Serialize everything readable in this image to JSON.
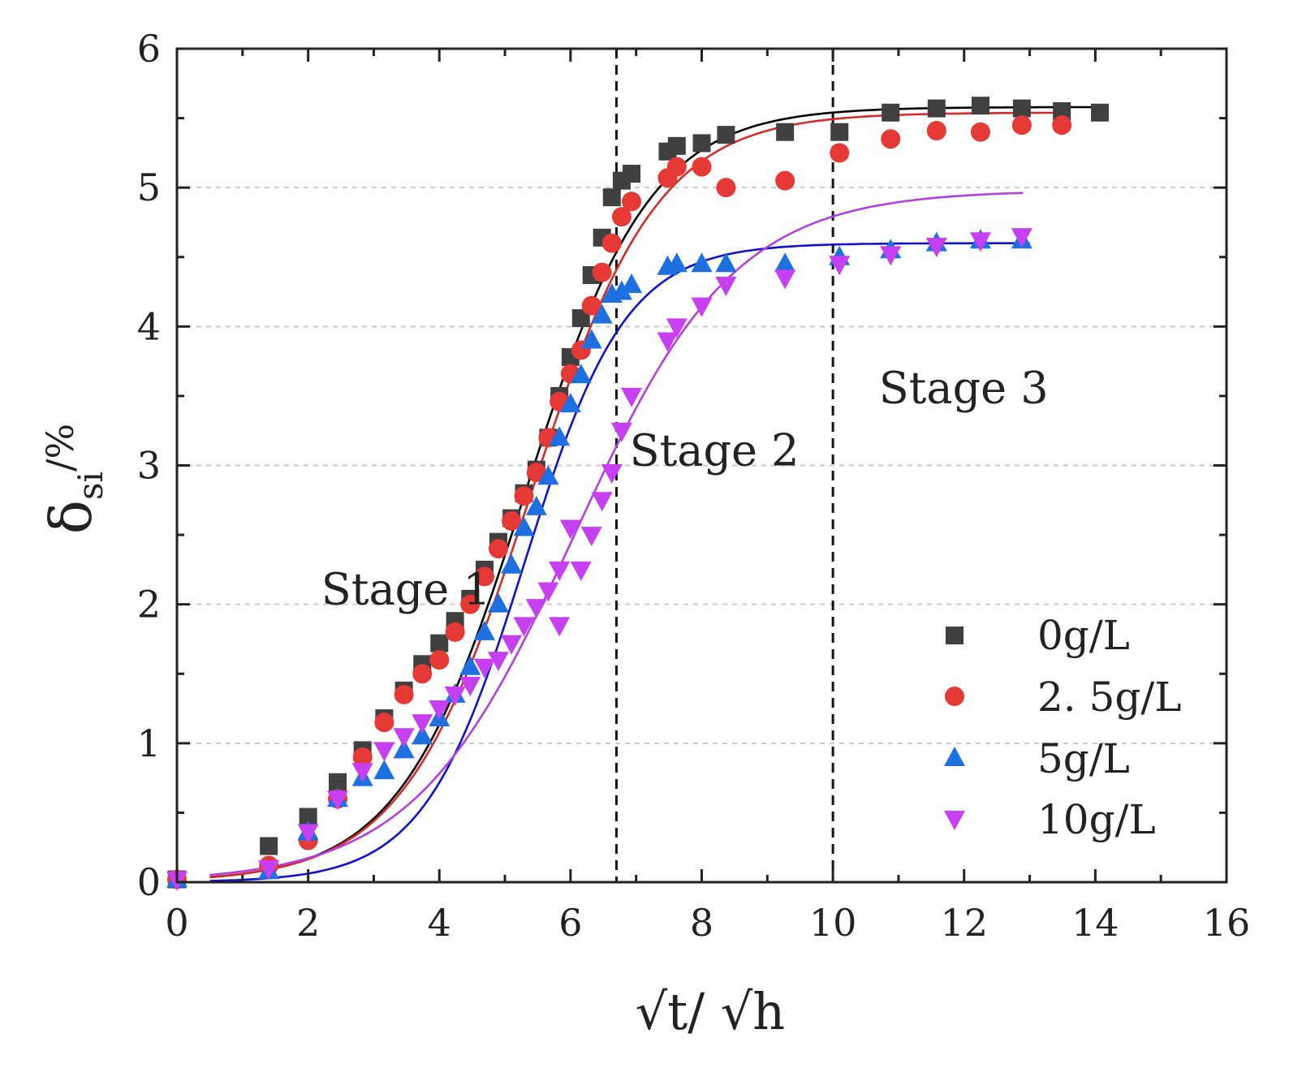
{
  "chart_data": {
    "type": "scatter",
    "title": "",
    "xlabel": "√t/ √h",
    "ylabel": {
      "main": "δ",
      "sub": "si",
      "unit": "/%"
    },
    "xlim": [
      0,
      16
    ],
    "ylim": [
      0,
      6
    ],
    "x_ticks": [
      0,
      2,
      4,
      6,
      8,
      10,
      12,
      14,
      16
    ],
    "y_ticks": [
      0,
      1,
      2,
      3,
      4,
      5,
      6
    ],
    "grid": "horizontal dashed",
    "legend_position": "bottom-right",
    "vlines": [
      6.7,
      10
    ],
    "annotations": [
      {
        "text": "Stage 1",
        "x": 2.2,
        "y": 2.0
      },
      {
        "text": "Stage 2",
        "x": 6.9,
        "y": 3.0
      },
      {
        "text": "Stage 3",
        "x": 10.7,
        "y": 3.45
      }
    ],
    "colors": {
      "s0": "#404040",
      "s1": "#e53935",
      "s2": "#1e6fe0",
      "s3": "#c63ff0"
    },
    "series": [
      {
        "name": "0g/L",
        "marker": "square",
        "color_key": "s0",
        "fit_color": "#000000",
        "fit": {
          "A": 5.58,
          "x0": 5.3,
          "k": 1.05,
          "start": 0.5,
          "end": 14
        },
        "points": [
          [
            0,
            0.02
          ],
          [
            1.4,
            0.26
          ],
          [
            2.0,
            0.47
          ],
          [
            2.45,
            0.72
          ],
          [
            2.83,
            0.95
          ],
          [
            3.16,
            1.18
          ],
          [
            3.46,
            1.38
          ],
          [
            3.74,
            1.57
          ],
          [
            4.0,
            1.72
          ],
          [
            4.24,
            1.88
          ],
          [
            4.47,
            2.04
          ],
          [
            4.69,
            2.25
          ],
          [
            4.9,
            2.45
          ],
          [
            5.1,
            2.62
          ],
          [
            5.29,
            2.8
          ],
          [
            5.48,
            2.97
          ],
          [
            5.66,
            3.2
          ],
          [
            5.83,
            3.5
          ],
          [
            6.0,
            3.78
          ],
          [
            6.16,
            4.06
          ],
          [
            6.32,
            4.37
          ],
          [
            6.48,
            4.64
          ],
          [
            6.63,
            4.93
          ],
          [
            6.78,
            5.05
          ],
          [
            6.93,
            5.1
          ],
          [
            7.48,
            5.26
          ],
          [
            7.62,
            5.3
          ],
          [
            8.0,
            5.32
          ],
          [
            8.37,
            5.38
          ],
          [
            9.27,
            5.4
          ],
          [
            10.1,
            5.4
          ],
          [
            10.88,
            5.54
          ],
          [
            11.58,
            5.57
          ],
          [
            12.25,
            5.59
          ],
          [
            12.88,
            5.57
          ],
          [
            13.49,
            5.55
          ],
          [
            14.07,
            5.54
          ]
        ]
      },
      {
        "name": "2. 5g/L",
        "marker": "circle",
        "color_key": "s1",
        "fit_color": "#d42a2a",
        "fit": {
          "A": 5.54,
          "x0": 5.38,
          "k": 1.03,
          "start": 0.5,
          "end": 13.6
        },
        "points": [
          [
            0,
            0.02
          ],
          [
            1.4,
            0.12
          ],
          [
            2.0,
            0.3
          ],
          [
            2.45,
            0.6
          ],
          [
            2.83,
            0.9
          ],
          [
            3.16,
            1.15
          ],
          [
            3.46,
            1.35
          ],
          [
            3.74,
            1.5
          ],
          [
            4.0,
            1.6
          ],
          [
            4.24,
            1.8
          ],
          [
            4.47,
            2.0
          ],
          [
            4.69,
            2.2
          ],
          [
            4.9,
            2.4
          ],
          [
            5.1,
            2.6
          ],
          [
            5.29,
            2.78
          ],
          [
            5.48,
            2.95
          ],
          [
            5.66,
            3.2
          ],
          [
            5.83,
            3.46
          ],
          [
            6.0,
            3.66
          ],
          [
            6.16,
            3.83
          ],
          [
            6.32,
            4.15
          ],
          [
            6.48,
            4.39
          ],
          [
            6.63,
            4.6
          ],
          [
            6.78,
            4.79
          ],
          [
            6.93,
            4.9
          ],
          [
            7.48,
            5.07
          ],
          [
            7.62,
            5.15
          ],
          [
            8.0,
            5.15
          ],
          [
            8.37,
            5.0
          ],
          [
            9.27,
            5.05
          ],
          [
            10.1,
            5.25
          ],
          [
            10.88,
            5.35
          ],
          [
            11.58,
            5.41
          ],
          [
            12.25,
            5.4
          ],
          [
            12.88,
            5.45
          ],
          [
            13.49,
            5.45
          ]
        ]
      },
      {
        "name": "5g/L",
        "marker": "triangle-up",
        "color_key": "s2",
        "fit_color": "#1010d0",
        "fit": {
          "A": 4.6,
          "x0": 5.3,
          "k": 1.3,
          "start": 0.5,
          "end": 13.0
        },
        "points": [
          [
            0,
            0.02
          ],
          [
            1.4,
            0.08
          ],
          [
            2.0,
            0.36
          ],
          [
            2.45,
            0.6
          ],
          [
            2.83,
            0.75
          ],
          [
            3.16,
            0.8
          ],
          [
            3.46,
            0.95
          ],
          [
            3.74,
            1.05
          ],
          [
            4.0,
            1.18
          ],
          [
            4.24,
            1.35
          ],
          [
            4.47,
            1.55
          ],
          [
            4.69,
            1.8
          ],
          [
            4.9,
            2.0
          ],
          [
            5.1,
            2.28
          ],
          [
            5.29,
            2.55
          ],
          [
            5.48,
            2.7
          ],
          [
            5.66,
            2.92
          ],
          [
            5.83,
            3.2
          ],
          [
            6.0,
            3.44
          ],
          [
            6.16,
            3.65
          ],
          [
            6.32,
            3.9
          ],
          [
            6.48,
            4.08
          ],
          [
            6.63,
            4.23
          ],
          [
            6.78,
            4.25
          ],
          [
            6.93,
            4.3
          ],
          [
            7.48,
            4.43
          ],
          [
            7.62,
            4.45
          ],
          [
            8.0,
            4.45
          ],
          [
            8.37,
            4.45
          ],
          [
            9.27,
            4.45
          ],
          [
            10.1,
            4.5
          ],
          [
            10.88,
            4.55
          ],
          [
            11.58,
            4.6
          ],
          [
            12.25,
            4.62
          ],
          [
            12.88,
            4.62
          ]
        ]
      },
      {
        "name": "10g/L",
        "marker": "triangle-down",
        "color_key": "s3",
        "fit_color": "#b040e0",
        "fit": {
          "A": 4.98,
          "x0": 6.05,
          "k": 0.82,
          "start": 0.5,
          "end": 12.9
        },
        "points": [
          [
            0,
            0.02
          ],
          [
            1.4,
            0.1
          ],
          [
            2.0,
            0.36
          ],
          [
            2.45,
            0.6
          ],
          [
            2.83,
            0.8
          ],
          [
            3.16,
            0.95
          ],
          [
            3.46,
            1.05
          ],
          [
            3.74,
            1.15
          ],
          [
            4.0,
            1.25
          ],
          [
            4.24,
            1.35
          ],
          [
            4.47,
            1.42
          ],
          [
            4.69,
            1.55
          ],
          [
            4.9,
            1.6
          ],
          [
            5.1,
            1.72
          ],
          [
            5.29,
            1.85
          ],
          [
            5.48,
            1.98
          ],
          [
            5.66,
            2.1
          ],
          [
            5.83,
            2.25
          ],
          [
            5.83,
            1.85
          ],
          [
            6.0,
            2.55
          ],
          [
            6.16,
            2.25
          ],
          [
            6.32,
            2.5
          ],
          [
            6.48,
            2.75
          ],
          [
            6.63,
            2.95
          ],
          [
            6.78,
            3.25
          ],
          [
            6.93,
            3.5
          ],
          [
            7.48,
            3.9
          ],
          [
            7.62,
            4.0
          ],
          [
            8.0,
            4.15
          ],
          [
            8.37,
            4.3
          ],
          [
            9.27,
            4.35
          ],
          [
            10.1,
            4.45
          ],
          [
            10.88,
            4.52
          ],
          [
            11.58,
            4.58
          ],
          [
            12.25,
            4.62
          ],
          [
            12.88,
            4.65
          ]
        ]
      }
    ]
  }
}
